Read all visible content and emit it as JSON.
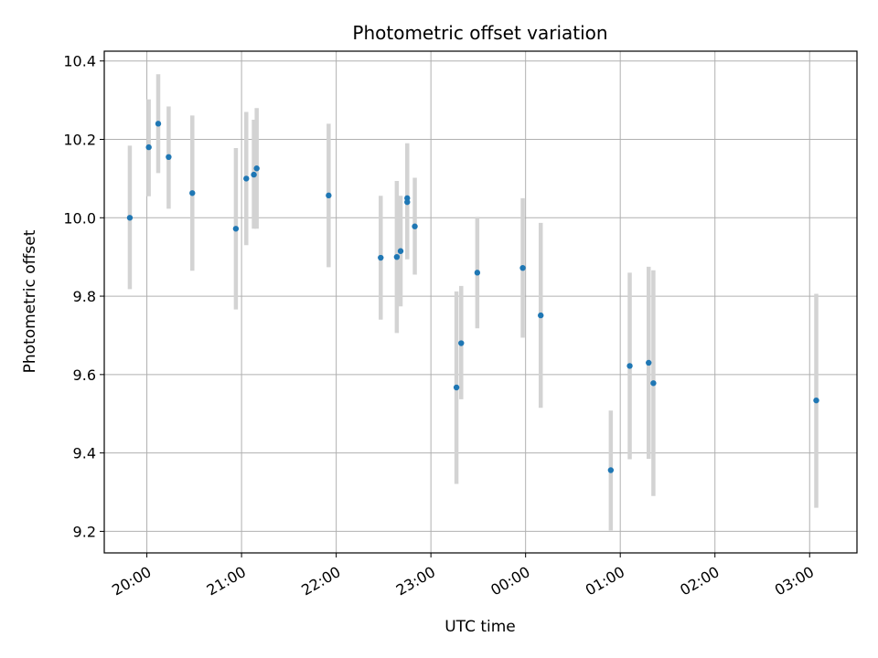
{
  "chart_data": {
    "type": "scatter",
    "title": "Photometric offset variation",
    "xlabel": "UTC time",
    "ylabel": "Photometric offset",
    "x_unit": "UTC time (hours past midnight of first night; values above 24 are next day)",
    "xlim": [
      19.55,
      27.5
    ],
    "ylim": [
      9.145,
      10.425
    ],
    "grid": true,
    "x_ticks": [
      {
        "value": 20,
        "label": "20:00"
      },
      {
        "value": 21,
        "label": "21:00"
      },
      {
        "value": 22,
        "label": "22:00"
      },
      {
        "value": 23,
        "label": "23:00"
      },
      {
        "value": 24,
        "label": "00:00"
      },
      {
        "value": 25,
        "label": "01:00"
      },
      {
        "value": 26,
        "label": "02:00"
      },
      {
        "value": 27,
        "label": "03:00"
      }
    ],
    "y_ticks": [
      {
        "value": 9.2,
        "label": "9.2"
      },
      {
        "value": 9.4,
        "label": "9.4"
      },
      {
        "value": 9.6,
        "label": "9.6"
      },
      {
        "value": 9.8,
        "label": "9.8"
      },
      {
        "value": 10.0,
        "label": "10.0"
      },
      {
        "value": 10.2,
        "label": "10.2"
      },
      {
        "value": 10.4,
        "label": "10.4"
      }
    ],
    "series": [
      {
        "marker_color": "#1f77b4",
        "errorbar_color": "#d3d3d3",
        "points": [
          {
            "x": 19.82,
            "y": 10.0,
            "ylow": 9.818,
            "yhigh": 10.184
          },
          {
            "x": 20.02,
            "y": 10.18,
            "ylow": 10.055,
            "yhigh": 10.302
          },
          {
            "x": 20.12,
            "y": 10.24,
            "ylow": 10.114,
            "yhigh": 10.366
          },
          {
            "x": 20.23,
            "y": 10.155,
            "ylow": 10.023,
            "yhigh": 10.284
          },
          {
            "x": 20.48,
            "y": 10.063,
            "ylow": 9.865,
            "yhigh": 10.261
          },
          {
            "x": 20.94,
            "y": 9.972,
            "ylow": 9.766,
            "yhigh": 10.178
          },
          {
            "x": 21.05,
            "y": 10.1,
            "ylow": 9.93,
            "yhigh": 10.27
          },
          {
            "x": 21.13,
            "y": 10.11,
            "ylow": 9.972,
            "yhigh": 10.25
          },
          {
            "x": 21.16,
            "y": 10.126,
            "ylow": 9.972,
            "yhigh": 10.28
          },
          {
            "x": 21.92,
            "y": 10.057,
            "ylow": 9.874,
            "yhigh": 10.24
          },
          {
            "x": 22.47,
            "y": 9.898,
            "ylow": 9.74,
            "yhigh": 10.056
          },
          {
            "x": 22.64,
            "y": 9.9,
            "ylow": 9.706,
            "yhigh": 10.094
          },
          {
            "x": 22.68,
            "y": 9.915,
            "ylow": 9.774,
            "yhigh": 10.056
          },
          {
            "x": 22.75,
            "y": 10.05,
            "ylow": 9.934,
            "yhigh": 10.19
          },
          {
            "x": 22.75,
            "y": 10.04,
            "ylow": 9.894,
            "yhigh": 10.187
          },
          {
            "x": 22.83,
            "y": 9.978,
            "ylow": 9.855,
            "yhigh": 10.102
          },
          {
            "x": 23.27,
            "y": 9.567,
            "ylow": 9.321,
            "yhigh": 9.812
          },
          {
            "x": 23.32,
            "y": 9.68,
            "ylow": 9.537,
            "yhigh": 9.826
          },
          {
            "x": 23.49,
            "y": 9.86,
            "ylow": 9.718,
            "yhigh": 10.002
          },
          {
            "x": 23.97,
            "y": 9.872,
            "ylow": 9.694,
            "yhigh": 10.05
          },
          {
            "x": 24.16,
            "y": 9.751,
            "ylow": 9.515,
            "yhigh": 9.987
          },
          {
            "x": 24.9,
            "y": 9.356,
            "ylow": 9.202,
            "yhigh": 9.508
          },
          {
            "x": 25.1,
            "y": 9.622,
            "ylow": 9.384,
            "yhigh": 9.86
          },
          {
            "x": 25.3,
            "y": 9.63,
            "ylow": 9.385,
            "yhigh": 9.875
          },
          {
            "x": 25.35,
            "y": 9.578,
            "ylow": 9.29,
            "yhigh": 9.866
          },
          {
            "x": 27.07,
            "y": 9.534,
            "ylow": 9.26,
            "yhigh": 9.806
          }
        ]
      }
    ]
  }
}
